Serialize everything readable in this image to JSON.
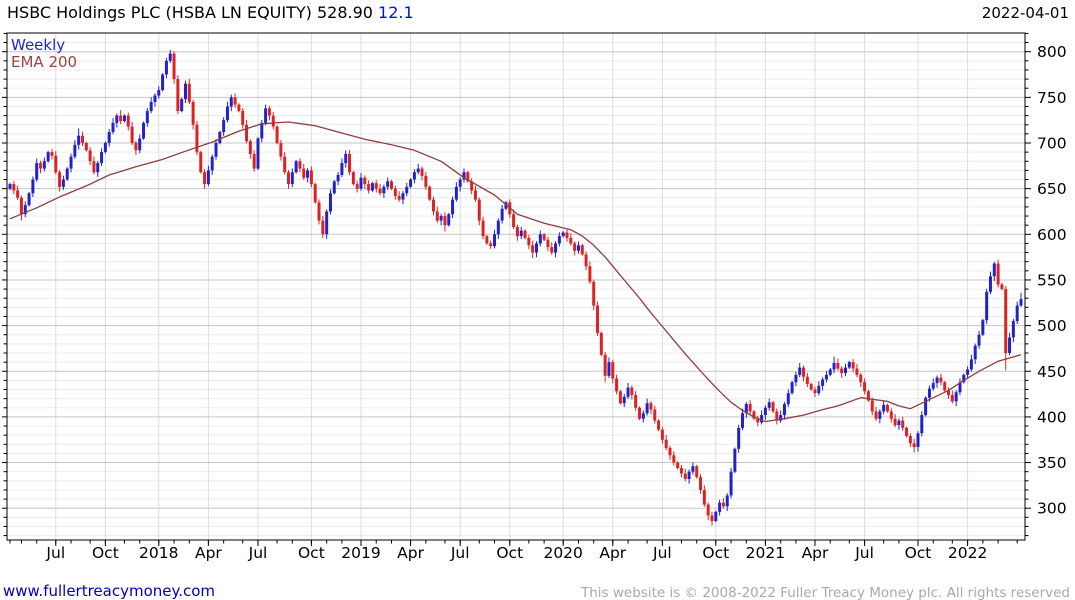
{
  "header": {
    "instrument": "HSBC Holdings PLC (HSBA LN EQUITY) 528.90",
    "change": "12.1",
    "date": "2022-04-01"
  },
  "legend": {
    "series": "Weekly",
    "overlay": "EMA 200"
  },
  "footer": {
    "website": "www.fullertreacymoney.com",
    "copyright": "This website is © 2008-2022 Fuller Treacy Money plc. All rights reserved"
  },
  "colors": {
    "candle_up": "#2222cc",
    "candle_down": "#dd2222",
    "ema": "#8f3e3e",
    "grid_minor": "#ececec",
    "grid_major": "#c6c6c6",
    "grid_vertical": "#dcdcdc",
    "frame": "#000000",
    "axis_text": "#000000",
    "link": "#0000bb",
    "muted_text": "#a9a9a9",
    "change_text": "#0011dd"
  },
  "chart_data": {
    "type": "candlestick",
    "title": "HSBC Holdings PLC (HSBA LN EQUITY)",
    "last_price": 528.9,
    "change": 12.1,
    "as_of": "2022-04-01",
    "frequency": "Weekly",
    "overlay": "EMA 200",
    "start": "2017-04",
    "end": "2022-04",
    "ylim": [
      265,
      820
    ],
    "y_ticks": [
      300,
      350,
      400,
      450,
      500,
      550,
      600,
      650,
      700,
      750,
      800
    ],
    "grid": "minor horizontal every 10, major every 50, vertical each quarter",
    "legend_position": "top-left inside plot",
    "x_tick_labels": [
      [
        12,
        "Jul"
      ],
      [
        25,
        "Oct"
      ],
      [
        39,
        "2018"
      ],
      [
        52,
        "Apr"
      ],
      [
        65,
        "Jul"
      ],
      [
        79,
        "Oct"
      ],
      [
        92,
        "2019"
      ],
      [
        105,
        "Apr"
      ],
      [
        118,
        "Jul"
      ],
      [
        131,
        "Oct"
      ],
      [
        145,
        "2020"
      ],
      [
        158,
        "Apr"
      ],
      [
        171,
        "Jul"
      ],
      [
        185,
        "Oct"
      ],
      [
        198,
        "2021"
      ],
      [
        211,
        "Apr"
      ],
      [
        224,
        "Jul"
      ],
      [
        238,
        "Oct"
      ],
      [
        251,
        "2022"
      ]
    ],
    "month_start_indices": [
      0,
      3,
      7,
      12,
      16,
      21,
      25,
      30,
      34,
      39,
      43,
      47,
      52,
      56,
      61,
      65,
      70,
      74,
      79,
      83,
      87,
      92,
      96,
      100,
      105,
      109,
      114,
      118,
      123,
      127,
      131,
      136,
      140,
      145,
      149,
      153,
      158,
      162,
      167,
      171,
      176,
      180,
      185,
      189,
      193,
      198,
      202,
      206,
      211,
      215,
      220,
      224,
      229,
      233,
      238,
      242,
      247,
      251,
      255,
      259,
      264
    ],
    "first_open": 650,
    "closes": [
      655,
      648,
      640,
      622,
      632,
      645,
      660,
      678,
      672,
      680,
      690,
      686,
      668,
      652,
      660,
      672,
      685,
      698,
      708,
      700,
      692,
      680,
      668,
      678,
      690,
      700,
      712,
      722,
      730,
      724,
      730,
      718,
      700,
      692,
      705,
      722,
      735,
      745,
      752,
      758,
      775,
      790,
      798,
      770,
      735,
      748,
      765,
      745,
      720,
      690,
      668,
      655,
      670,
      685,
      700,
      712,
      725,
      740,
      750,
      742,
      735,
      720,
      702,
      688,
      672,
      705,
      722,
      738,
      730,
      718,
      700,
      685,
      668,
      655,
      668,
      680,
      672,
      662,
      670,
      655,
      635,
      615,
      600,
      625,
      645,
      658,
      665,
      678,
      688,
      668,
      655,
      650,
      662,
      655,
      648,
      656,
      650,
      645,
      652,
      658,
      650,
      642,
      638,
      645,
      652,
      660,
      668,
      672,
      664,
      652,
      638,
      625,
      615,
      620,
      610,
      622,
      638,
      652,
      660,
      668,
      658,
      648,
      638,
      615,
      598,
      590,
      587,
      600,
      615,
      628,
      635,
      622,
      608,
      598,
      604,
      596,
      588,
      580,
      590,
      600,
      594,
      586,
      580,
      590,
      598,
      602,
      596,
      590,
      582,
      588,
      578,
      565,
      548,
      522,
      492,
      468,
      445,
      460,
      442,
      428,
      415,
      422,
      432,
      424,
      410,
      398,
      404,
      415,
      408,
      396,
      386,
      375,
      366,
      358,
      350,
      344,
      338,
      332,
      340,
      346,
      334,
      320,
      304,
      292,
      286,
      296,
      306,
      302,
      314,
      340,
      365,
      388,
      404,
      414,
      406,
      398,
      394,
      402,
      410,
      416,
      406,
      396,
      402,
      414,
      426,
      438,
      446,
      454,
      444,
      436,
      430,
      426,
      434,
      441,
      446,
      452,
      459,
      453,
      448,
      454,
      460,
      453,
      446,
      438,
      428,
      418,
      406,
      398,
      406,
      413,
      406,
      398,
      391,
      396,
      388,
      379,
      371,
      367,
      382,
      402,
      421,
      431,
      437,
      443,
      438,
      429,
      424,
      417,
      427,
      438,
      446,
      452,
      463,
      478,
      490,
      506,
      537,
      554,
      568,
      545,
      540,
      470,
      487,
      505,
      522,
      528.9
    ],
    "wick_overrides": [
      [
        3,
        null,
        615
      ],
      [
        18,
        716,
        null
      ],
      [
        29,
        736,
        null
      ],
      [
        42,
        802,
        null
      ],
      [
        51,
        null,
        650
      ],
      [
        58,
        753,
        null
      ],
      [
        67,
        742,
        null
      ],
      [
        82,
        null,
        596
      ],
      [
        88,
        692,
        null
      ],
      [
        114,
        null,
        603
      ],
      [
        126,
        null,
        584
      ],
      [
        137,
        null,
        574
      ],
      [
        156,
        null,
        438
      ],
      [
        184,
        null,
        281
      ],
      [
        216,
        466,
        null
      ],
      [
        237,
        null,
        361
      ],
      [
        258,
        570,
        null
      ],
      [
        261,
        null,
        451
      ],
      [
        265,
        536,
        null
      ]
    ],
    "ema": {
      "label": "EMA 200",
      "points": [
        [
          0,
          617
        ],
        [
          7,
          629
        ],
        [
          13,
          641
        ],
        [
          20,
          653
        ],
        [
          26,
          665
        ],
        [
          33,
          674
        ],
        [
          40,
          682
        ],
        [
          46,
          691
        ],
        [
          53,
          701
        ],
        [
          60,
          713
        ],
        [
          66,
          721
        ],
        [
          73,
          723
        ],
        [
          80,
          719
        ],
        [
          86,
          712
        ],
        [
          93,
          704
        ],
        [
          100,
          698
        ],
        [
          106,
          692
        ],
        [
          113,
          680
        ],
        [
          119,
          662
        ],
        [
          127,
          643
        ],
        [
          133,
          622
        ],
        [
          140,
          612
        ],
        [
          147,
          605
        ],
        [
          150,
          598
        ],
        [
          153,
          588
        ],
        [
          156,
          575
        ],
        [
          159,
          560
        ],
        [
          162,
          545
        ],
        [
          165,
          530
        ],
        [
          168,
          514
        ],
        [
          171,
          499
        ],
        [
          174,
          484
        ],
        [
          177,
          469
        ],
        [
          180,
          455
        ],
        [
          183,
          441
        ],
        [
          186,
          428
        ],
        [
          189,
          416
        ],
        [
          192,
          407
        ],
        [
          195,
          400
        ],
        [
          198,
          395
        ],
        [
          203,
          398
        ],
        [
          208,
          402
        ],
        [
          213,
          408
        ],
        [
          217,
          412
        ],
        [
          223,
          421
        ],
        [
          230,
          417
        ],
        [
          233,
          412
        ],
        [
          236,
          409
        ],
        [
          241,
          419
        ],
        [
          246,
          429
        ],
        [
          250,
          440
        ],
        [
          254,
          450
        ],
        [
          259,
          461
        ],
        [
          265,
          468
        ]
      ]
    }
  }
}
